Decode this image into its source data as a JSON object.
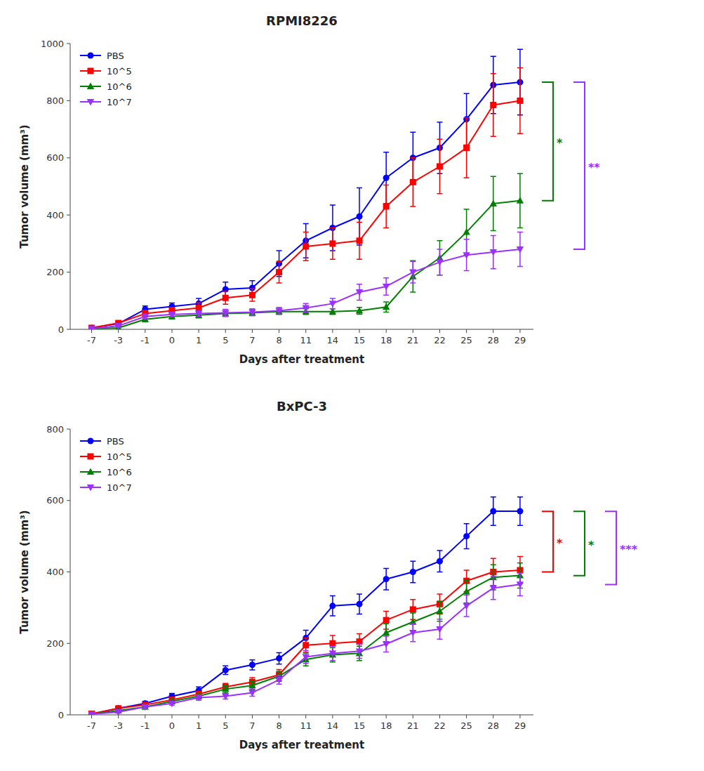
{
  "chart_data": [
    {
      "type": "line",
      "title": "RPMI8226",
      "xlabel": "Days after treatment",
      "ylabel": "Tumor volume (mm³)",
      "categories": [
        "-7",
        "-3",
        "-1",
        "0",
        "1",
        "5",
        "7",
        "8",
        "11",
        "14",
        "15",
        "18",
        "21",
        "22",
        "25",
        "28",
        "29"
      ],
      "ylim": [
        0,
        1000
      ],
      "yticks": [
        0,
        200,
        400,
        600,
        800,
        1000
      ],
      "grid": false,
      "legend": "upper left",
      "series": [
        {
          "name": "PBS",
          "color": "#0000FF",
          "marker": "circle",
          "values": [
            5,
            20,
            70,
            80,
            90,
            140,
            145,
            230,
            310,
            355,
            395,
            530,
            600,
            635,
            735,
            855,
            865
          ],
          "errors": [
            3,
            8,
            12,
            12,
            18,
            25,
            25,
            45,
            60,
            80,
            100,
            90,
            90,
            90,
            90,
            100,
            115
          ]
        },
        {
          "name": "10^5",
          "color": "#FF0000",
          "marker": "square",
          "values": [
            5,
            22,
            55,
            65,
            75,
            110,
            120,
            200,
            290,
            300,
            310,
            430,
            515,
            570,
            635,
            785,
            800
          ],
          "errors": [
            3,
            7,
            12,
            12,
            18,
            22,
            22,
            38,
            50,
            55,
            65,
            75,
            85,
            95,
            105,
            110,
            115
          ]
        },
        {
          "name": "10^6",
          "color": "#008000",
          "marker": "triangle-up",
          "values": [
            2,
            5,
            35,
            45,
            50,
            55,
            58,
            62,
            62,
            62,
            65,
            78,
            185,
            250,
            340,
            440,
            450
          ],
          "errors": [
            2,
            4,
            8,
            8,
            10,
            10,
            10,
            10,
            10,
            10,
            12,
            18,
            55,
            60,
            80,
            95,
            95
          ]
        },
        {
          "name": "10^7",
          "color": "#9B30FF",
          "marker": "triangle-down",
          "values": [
            2,
            12,
            45,
            52,
            55,
            58,
            60,
            65,
            75,
            90,
            130,
            150,
            200,
            235,
            260,
            270,
            280
          ],
          "errors": [
            2,
            4,
            8,
            8,
            10,
            12,
            12,
            12,
            15,
            18,
            28,
            30,
            38,
            45,
            55,
            58,
            60
          ]
        }
      ],
      "annotations": [
        {
          "text": "*",
          "color": "#008000",
          "y_low": 450,
          "y_high": 865
        },
        {
          "text": "**",
          "color": "#9B30FF",
          "y_low": 280,
          "y_high": 865
        }
      ]
    },
    {
      "type": "line",
      "title": "BxPC-3",
      "xlabel": "Days after treatment",
      "ylabel": "Tumor volume (mm³)",
      "categories": [
        "-7",
        "-3",
        "-1",
        "0",
        "1",
        "5",
        "7",
        "8",
        "11",
        "14",
        "15",
        "18",
        "21",
        "22",
        "25",
        "28",
        "29"
      ],
      "ylim": [
        0,
        800
      ],
      "yticks": [
        0,
        200,
        400,
        600,
        800
      ],
      "grid": false,
      "legend": "upper left",
      "series": [
        {
          "name": "PBS",
          "color": "#0000FF",
          "marker": "circle",
          "values": [
            2,
            18,
            32,
            52,
            68,
            125,
            140,
            158,
            215,
            305,
            310,
            380,
            400,
            430,
            500,
            570,
            570
          ],
          "errors": [
            1,
            4,
            6,
            8,
            10,
            12,
            14,
            16,
            22,
            28,
            28,
            30,
            30,
            30,
            35,
            40,
            40
          ]
        },
        {
          "name": "10^5",
          "color": "#FF0000",
          "marker": "square",
          "values": [
            3,
            18,
            28,
            42,
            58,
            78,
            92,
            112,
            195,
            200,
            205,
            265,
            295,
            310,
            375,
            400,
            405
          ],
          "errors": [
            1,
            4,
            5,
            6,
            8,
            10,
            12,
            15,
            20,
            22,
            22,
            25,
            28,
            28,
            30,
            38,
            38
          ]
        },
        {
          "name": "10^6",
          "color": "#008000",
          "marker": "triangle-up",
          "values": [
            2,
            12,
            22,
            38,
            52,
            72,
            82,
            108,
            155,
            168,
            172,
            230,
            260,
            290,
            345,
            385,
            390
          ],
          "errors": [
            1,
            3,
            5,
            6,
            8,
            10,
            12,
            14,
            18,
            20,
            20,
            25,
            25,
            28,
            32,
            35,
            35
          ]
        },
        {
          "name": "10^7",
          "color": "#9B30FF",
          "marker": "triangle-down",
          "values": [
            2,
            8,
            22,
            32,
            48,
            52,
            62,
            98,
            162,
            172,
            178,
            198,
            230,
            240,
            305,
            355,
            365
          ],
          "errors": [
            1,
            3,
            5,
            5,
            7,
            8,
            10,
            12,
            18,
            20,
            20,
            22,
            25,
            28,
            30,
            32,
            32
          ]
        }
      ],
      "annotations": [
        {
          "text": "*",
          "color": "#FF0000",
          "y_low": 400,
          "y_high": 569.6
        },
        {
          "text": "*",
          "color": "#008000",
          "y_low": 389.6,
          "y_high": 569.6
        },
        {
          "text": "***",
          "color": "#9B30FF",
          "y_low": 364.8,
          "y_high": 569.6
        }
      ]
    }
  ]
}
